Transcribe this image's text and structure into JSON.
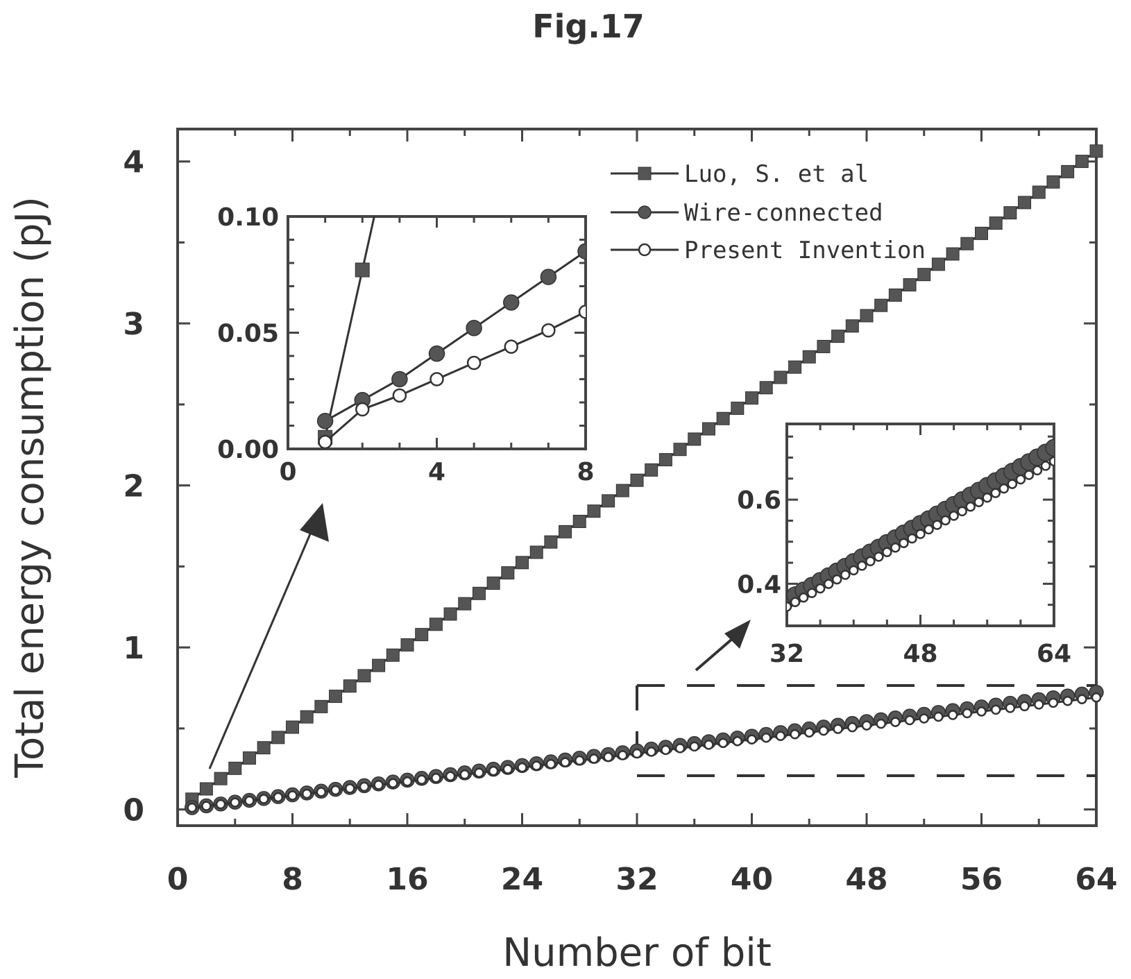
{
  "figure_title": "Fig.17",
  "colors": {
    "ink": "#333333",
    "marker": "#555555",
    "frame": "#444444",
    "open_fill": "#ffffff"
  },
  "chart_data": [
    {
      "type": "line",
      "role": "main",
      "xlabel": "Number of bit",
      "ylabel": "Total energy consumption (pJ)",
      "xlim": [
        0,
        64
      ],
      "ylim": [
        -0.1,
        4.2
      ],
      "xticks": [
        0,
        8,
        16,
        24,
        32,
        40,
        48,
        56,
        64
      ],
      "xtick_labels": [
        "0",
        "8",
        "16",
        "24",
        "32",
        "40",
        "48",
        "56",
        "64"
      ],
      "yticks": [
        0,
        1,
        2,
        3,
        4
      ],
      "ytick_labels": [
        "0",
        "1",
        "2",
        "3",
        "4"
      ],
      "legend_position": "top-right",
      "annotations": [
        "arrow to inset 0–8",
        "dashed box around 32–64 region with arrow to inset"
      ],
      "series": [
        {
          "name": "Luo, S. et al",
          "marker": "filled-square",
          "x_start": 1,
          "x_end": 64,
          "slope": 0.0635,
          "intercept": 0.0
        },
        {
          "name": "Wire-connected",
          "marker": "filled-circle",
          "x_start": 1,
          "x_end": 64,
          "slope": 0.0113,
          "intercept": 0.0
        },
        {
          "name": "Present Invention",
          "marker": "open-circle",
          "x_start": 1,
          "x_end": 64,
          "slope": 0.0108,
          "intercept": 0.0
        }
      ]
    },
    {
      "type": "line",
      "role": "inset-low",
      "xlim": [
        0,
        8
      ],
      "ylim": [
        0,
        0.1
      ],
      "xticks": [
        0,
        4,
        8
      ],
      "xtick_labels": [
        "0",
        "4",
        "8"
      ],
      "yticks": [
        0.0,
        0.05,
        0.1
      ],
      "ytick_labels": [
        "0.00",
        "0.05",
        "0.10"
      ],
      "series": [
        {
          "name": "Luo, S. et al",
          "x": [
            1,
            2,
            3
          ],
          "y": [
            0.005,
            0.077,
            0.149
          ]
        },
        {
          "name": "Wire-connected",
          "x": [
            1,
            2,
            3,
            4,
            5,
            6,
            7,
            8
          ],
          "y": [
            0.012,
            0.021,
            0.03,
            0.041,
            0.052,
            0.063,
            0.074,
            0.085
          ]
        },
        {
          "name": "Present Invention",
          "x": [
            1,
            2,
            3,
            4,
            5,
            6,
            7,
            8
          ],
          "y": [
            0.003,
            0.017,
            0.023,
            0.03,
            0.037,
            0.044,
            0.051,
            0.059
          ]
        }
      ]
    },
    {
      "type": "line",
      "role": "inset-high",
      "xlim": [
        32,
        64
      ],
      "ylim": [
        0.3,
        0.78
      ],
      "xticks": [
        32,
        48,
        64
      ],
      "xtick_labels": [
        "32",
        "48",
        "64"
      ],
      "yticks": [
        0.4,
        0.6
      ],
      "ytick_labels": [
        "0.4",
        "0.6"
      ],
      "series": [
        {
          "name": "Wire-connected",
          "x_start": 32,
          "x_end": 64,
          "slope": 0.0113,
          "intercept": 0.0
        },
        {
          "name": "Present Invention",
          "x_start": 32,
          "x_end": 64,
          "slope": 0.0108,
          "intercept": 0.0
        }
      ]
    }
  ]
}
